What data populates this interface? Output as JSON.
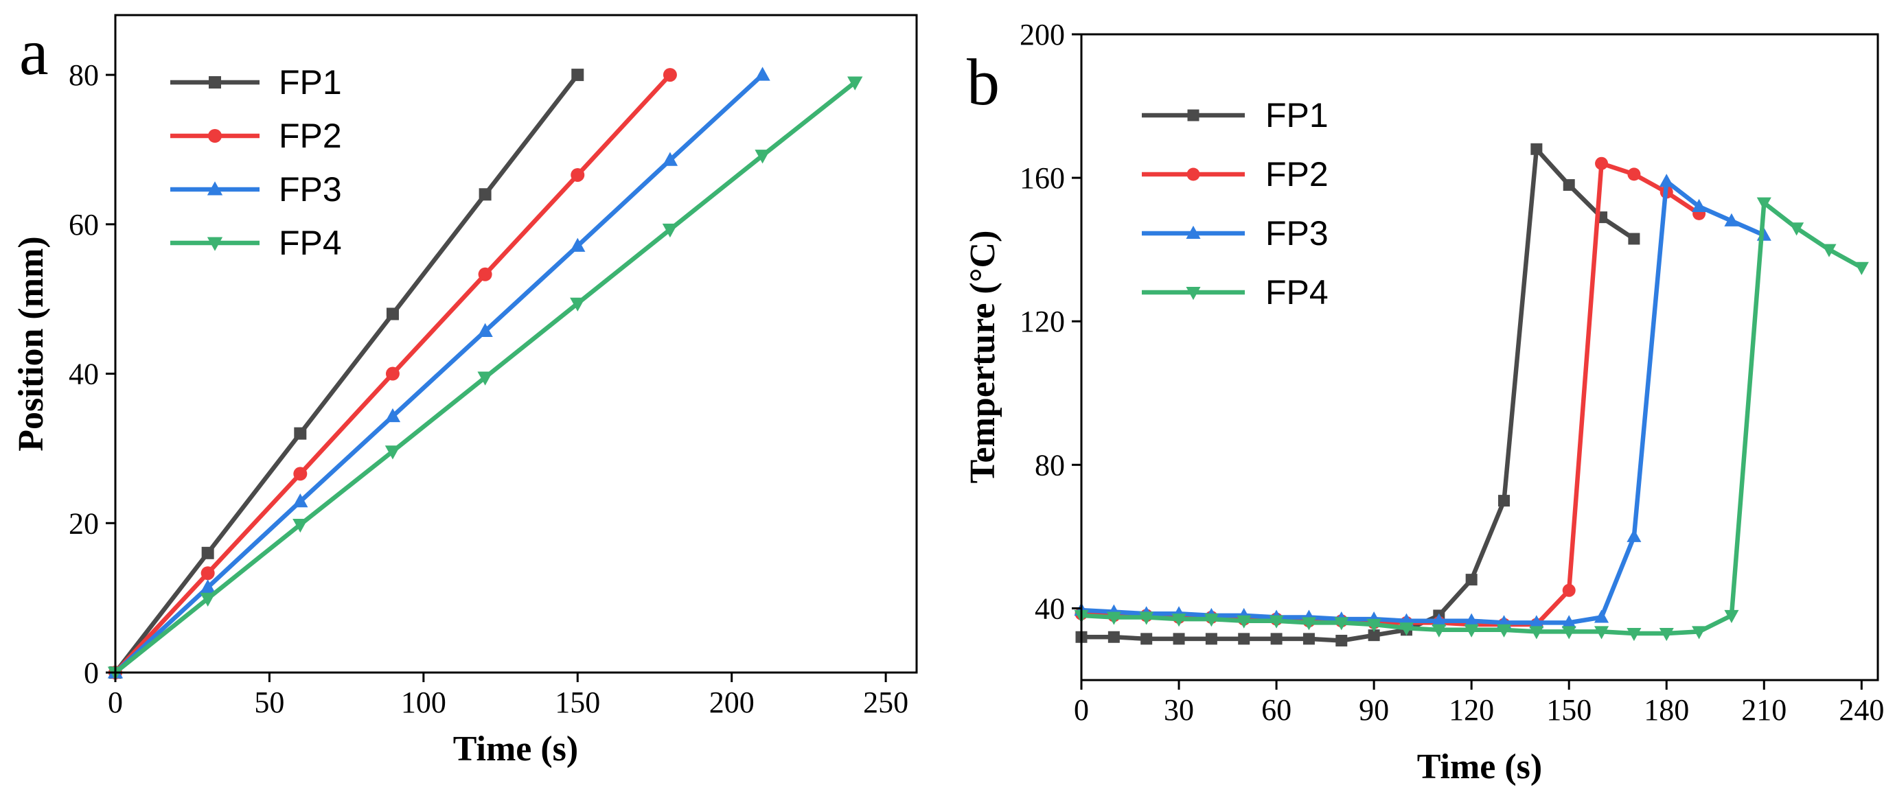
{
  "colors": {
    "FP1": "#4a4a4a",
    "FP2": "#ee3b3b",
    "FP3": "#2f7de1",
    "FP4": "#3cb371"
  },
  "chart_data": [
    {
      "panel": "a",
      "type": "line",
      "title": "",
      "xlabel": "Time (s)",
      "ylabel": "Position (mm)",
      "xlim": [
        0,
        260
      ],
      "ylim": [
        0,
        88
      ],
      "xticks": [
        0,
        50,
        100,
        150,
        200,
        250
      ],
      "yticks": [
        0,
        20,
        40,
        60,
        80
      ],
      "legend_position": "top-left",
      "series": [
        {
          "name": "FP1",
          "marker": "square",
          "x": [
            0,
            30,
            60,
            90,
            120,
            150
          ],
          "y": [
            0,
            16,
            32,
            48,
            64,
            80
          ]
        },
        {
          "name": "FP2",
          "marker": "circle",
          "x": [
            0,
            30,
            60,
            90,
            120,
            150,
            180
          ],
          "y": [
            0,
            13.3,
            26.6,
            40,
            53.3,
            66.6,
            80
          ]
        },
        {
          "name": "FP3",
          "marker": "triangle-up",
          "x": [
            0,
            30,
            60,
            90,
            120,
            150,
            180,
            210
          ],
          "y": [
            0,
            11.4,
            22.9,
            34.3,
            45.7,
            57.1,
            68.6,
            80
          ]
        },
        {
          "name": "FP4",
          "marker": "triangle-down",
          "x": [
            0,
            30,
            60,
            90,
            120,
            150,
            180,
            210,
            240
          ],
          "y": [
            0,
            9.9,
            19.8,
            29.6,
            39.5,
            49.4,
            59.3,
            69.2,
            79
          ]
        }
      ]
    },
    {
      "panel": "b",
      "type": "line",
      "title": "",
      "xlabel": "Time (s)",
      "ylabel": "Temperture (°C)",
      "xlim": [
        0,
        245
      ],
      "ylim": [
        20,
        200
      ],
      "xticks": [
        0,
        30,
        60,
        90,
        120,
        150,
        180,
        210,
        240
      ],
      "yticks": [
        40,
        80,
        120,
        160,
        200
      ],
      "legend_position": "top-left",
      "series": [
        {
          "name": "FP1",
          "marker": "square",
          "x": [
            0,
            10,
            20,
            30,
            40,
            50,
            60,
            70,
            80,
            90,
            100,
            110,
            120,
            130,
            140,
            150,
            160,
            170
          ],
          "y": [
            32,
            32,
            31.5,
            31.5,
            31.5,
            31.5,
            31.5,
            31.5,
            31,
            32.5,
            34,
            38,
            48,
            70,
            168,
            158,
            149,
            143
          ]
        },
        {
          "name": "FP2",
          "marker": "circle",
          "x": [
            0,
            10,
            20,
            30,
            40,
            50,
            60,
            70,
            80,
            90,
            100,
            110,
            120,
            130,
            140,
            150,
            160,
            170,
            180,
            190
          ],
          "y": [
            38.5,
            38,
            38,
            37.5,
            37.5,
            37,
            37,
            36.5,
            36.5,
            36,
            36,
            36,
            35.5,
            35.5,
            35.5,
            45,
            164,
            161,
            156,
            150
          ]
        },
        {
          "name": "FP3",
          "marker": "triangle-up",
          "x": [
            0,
            10,
            20,
            30,
            40,
            50,
            60,
            70,
            80,
            90,
            100,
            110,
            120,
            130,
            140,
            150,
            160,
            170,
            180,
            190,
            200,
            210
          ],
          "y": [
            39.5,
            39,
            38.5,
            38.5,
            38,
            38,
            37.5,
            37.5,
            37,
            37,
            36.5,
            36.5,
            36.5,
            36,
            36,
            36,
            37.5,
            60,
            159,
            152,
            148,
            144
          ]
        },
        {
          "name": "FP4",
          "marker": "triangle-down",
          "x": [
            0,
            10,
            20,
            30,
            40,
            50,
            60,
            70,
            80,
            90,
            100,
            110,
            120,
            130,
            140,
            150,
            160,
            170,
            180,
            190,
            200,
            210,
            220,
            230,
            240
          ],
          "y": [
            38,
            37.5,
            37.5,
            37,
            37,
            36.5,
            36.5,
            36,
            36,
            35.5,
            34.5,
            34,
            34,
            34,
            33.5,
            33.5,
            33.5,
            33,
            33,
            33.5,
            38,
            153,
            146,
            140,
            135
          ]
        }
      ]
    }
  ]
}
